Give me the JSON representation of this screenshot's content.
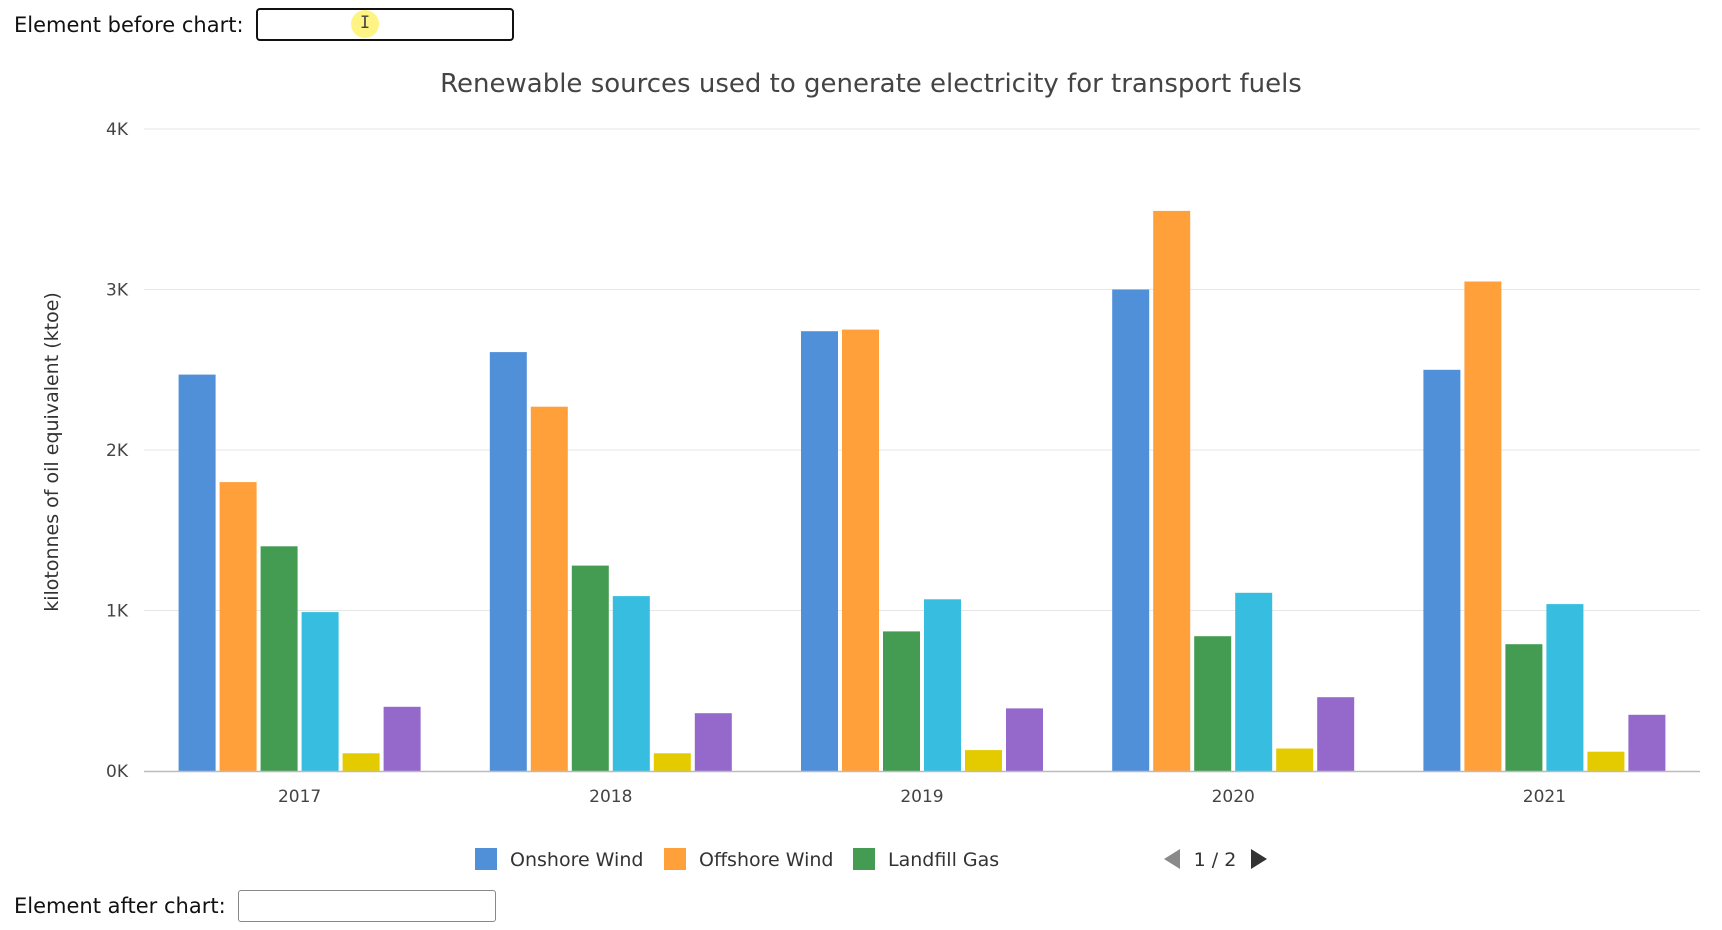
{
  "form": {
    "before_label": "Element before chart:",
    "after_label": "Element after chart:",
    "before_value": "",
    "after_value": ""
  },
  "chart_data": {
    "type": "bar",
    "title": "Renewable sources used to generate electricity for transport fuels",
    "xlabel": "",
    "ylabel": "kilotonnes of oil equivalent (ktoe)",
    "ylim": [
      0,
      4000
    ],
    "ytick_values": [
      0,
      1000,
      2000,
      3000,
      4000
    ],
    "ytick_labels": [
      "0K",
      "1K",
      "2K",
      "3K",
      "4K"
    ],
    "grid": true,
    "categories": [
      "2017",
      "2018",
      "2019",
      "2020",
      "2021"
    ],
    "series": [
      {
        "name": "Onshore Wind",
        "color": "#5090d9",
        "values": [
          2470,
          2610,
          2740,
          3000,
          2500
        ],
        "in_legend": true
      },
      {
        "name": "Offshore Wind",
        "color": "#ffa03b",
        "values": [
          1800,
          2270,
          2750,
          3490,
          3050
        ],
        "in_legend": true
      },
      {
        "name": "Landfill Gas",
        "color": "#439c52",
        "values": [
          1400,
          1280,
          870,
          840,
          790
        ],
        "in_legend": true
      },
      {
        "name": "",
        "color": "#36bde0",
        "values": [
          990,
          1090,
          1070,
          1110,
          1040
        ],
        "in_legend": false
      },
      {
        "name": "",
        "color": "#e4cb00",
        "values": [
          110,
          110,
          130,
          140,
          120
        ],
        "in_legend": false
      },
      {
        "name": "",
        "color": "#9469cb",
        "values": [
          400,
          360,
          390,
          460,
          350
        ],
        "in_legend": false
      }
    ],
    "legend_position": "bottom-center",
    "legend_page": "1 / 2"
  },
  "colors": {
    "grid": "#e6e6e6",
    "axis": "#bbbbbb",
    "pager_inactive": "#8a8a8a",
    "pager_active": "#333333"
  },
  "icons": {
    "prev": "arrow-left-icon",
    "next": "arrow-right-icon",
    "cursor": "text-cursor-icon"
  }
}
